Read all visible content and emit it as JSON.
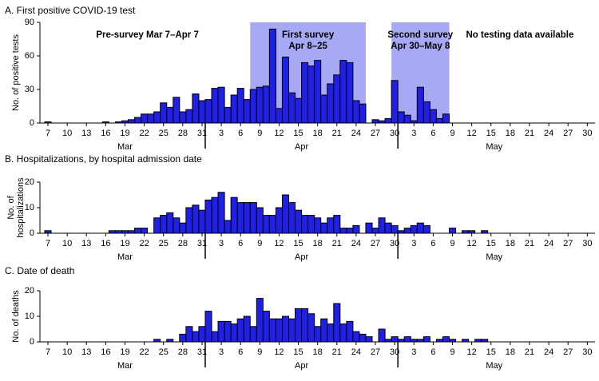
{
  "chart_data": [
    {
      "type": "bar",
      "title": "A. First positive COVID-19 test",
      "ylabel": [
        "No. of positive tests"
      ],
      "categories": [
        "7",
        null,
        null,
        "10",
        null,
        null,
        "13",
        null,
        null,
        "16",
        null,
        null,
        "19",
        null,
        null,
        "22",
        null,
        null,
        "25",
        null,
        null,
        "28",
        null,
        null,
        "31",
        null,
        null,
        "3",
        null,
        null,
        "6",
        null,
        null,
        "9",
        null,
        null,
        "12",
        null,
        null,
        "15",
        null,
        null,
        "18",
        null,
        null,
        "21",
        null,
        null,
        "24",
        null,
        null,
        "27",
        null,
        null,
        "30",
        null,
        null,
        "3",
        null,
        null,
        "6",
        null,
        null,
        "9",
        null,
        null,
        "12",
        null,
        null,
        "15",
        null,
        null,
        "18",
        null,
        null,
        "21",
        null,
        null,
        "24",
        null,
        null,
        "27",
        null,
        null,
        "30"
      ],
      "months": [
        {
          "label": "Mar",
          "start": 0
        },
        {
          "label": "Apr",
          "start": 25
        },
        {
          "label": "May",
          "start": 55
        }
      ],
      "values": [
        1,
        0,
        0,
        0,
        0,
        0,
        0,
        0,
        0,
        1,
        0,
        1,
        2,
        3,
        5,
        8,
        8,
        10,
        18,
        14,
        23,
        10,
        12,
        26,
        20,
        21,
        31,
        32,
        14,
        25,
        31,
        21,
        30,
        32,
        33,
        84,
        13,
        59,
        27,
        22,
        54,
        51,
        56,
        25,
        35,
        43,
        56,
        54,
        20,
        17,
        0,
        3,
        2,
        4,
        38,
        10,
        7,
        2,
        32,
        19,
        12,
        4,
        8,
        0,
        0,
        0,
        0,
        0,
        0,
        0,
        0,
        0,
        0,
        0,
        0,
        0,
        0,
        0,
        0,
        0,
        0,
        0,
        0,
        0,
        0
      ],
      "color": "#1f1fe6",
      "ylim": [
        0,
        90
      ],
      "yticks": [
        0,
        30,
        60,
        90
      ],
      "shade_color": "#a8a9f4",
      "spans": [
        {
          "label": [
            "Pre-survey Mar 7–Apr 7"
          ],
          "start": 0,
          "end": 31,
          "shaded": false
        },
        {
          "label": [
            "First survey",
            "Apr 8–25"
          ],
          "start": 32,
          "end": 49,
          "shaded": true
        },
        {
          "label": [
            "Second survey",
            "Apr 30–May 8"
          ],
          "start": 54,
          "end": 62,
          "shaded": true
        },
        {
          "label": [
            "No testing data available"
          ],
          "start": 63,
          "end": 84,
          "shaded": false
        }
      ]
    },
    {
      "type": "bar",
      "title": "B. Hospitalizations, by hospital admission date",
      "ylabel": [
        "No. of",
        "hospitalizations"
      ],
      "categories": [
        "7",
        null,
        null,
        "10",
        null,
        null,
        "13",
        null,
        null,
        "16",
        null,
        null,
        "19",
        null,
        null,
        "22",
        null,
        null,
        "25",
        null,
        null,
        "28",
        null,
        null,
        "31",
        null,
        null,
        "3",
        null,
        null,
        "6",
        null,
        null,
        "9",
        null,
        null,
        "12",
        null,
        null,
        "15",
        null,
        null,
        "18",
        null,
        null,
        "21",
        null,
        null,
        "24",
        null,
        null,
        "27",
        null,
        null,
        "30",
        null,
        null,
        "3",
        null,
        null,
        "6",
        null,
        null,
        "9",
        null,
        null,
        "12",
        null,
        null,
        "15",
        null,
        null,
        "18",
        null,
        null,
        "21",
        null,
        null,
        "24",
        null,
        null,
        "27",
        null,
        null,
        "30"
      ],
      "months": [
        {
          "label": "Mar",
          "start": 0
        },
        {
          "label": "Apr",
          "start": 25
        },
        {
          "label": "May",
          "start": 55
        }
      ],
      "values": [
        1,
        0,
        0,
        0,
        0,
        0,
        0,
        0,
        0,
        0,
        1,
        1,
        1,
        1,
        2,
        2,
        0,
        6,
        7,
        8,
        6,
        4,
        10,
        11,
        9,
        13,
        14,
        16,
        5,
        14,
        12,
        12,
        12,
        10,
        7,
        7,
        10,
        15,
        12,
        9,
        7,
        7,
        6,
        4,
        6,
        7,
        2,
        2,
        3,
        0,
        4,
        2,
        6,
        4,
        3,
        1,
        2,
        3,
        4,
        3,
        0,
        0,
        0,
        2,
        0,
        1,
        1,
        0,
        1,
        0,
        0,
        0,
        0,
        0,
        0,
        0,
        0,
        0,
        0,
        0,
        0,
        0,
        0,
        0,
        0
      ],
      "color": "#1f1fe6",
      "ylim": [
        0,
        20
      ],
      "yticks": [
        0,
        10,
        20
      ]
    },
    {
      "type": "bar",
      "title": "C. Date of death",
      "ylabel": [
        "No. of deaths"
      ],
      "categories": [
        "7",
        null,
        null,
        "10",
        null,
        null,
        "13",
        null,
        null,
        "16",
        null,
        null,
        "19",
        null,
        null,
        "22",
        null,
        null,
        "25",
        null,
        null,
        "28",
        null,
        null,
        "31",
        null,
        null,
        "3",
        null,
        null,
        "6",
        null,
        null,
        "9",
        null,
        null,
        "12",
        null,
        null,
        "15",
        null,
        null,
        "18",
        null,
        null,
        "21",
        null,
        null,
        "24",
        null,
        null,
        "27",
        null,
        null,
        "30",
        null,
        null,
        "3",
        null,
        null,
        "6",
        null,
        null,
        "9",
        null,
        null,
        "12",
        null,
        null,
        "15",
        null,
        null,
        "18",
        null,
        null,
        "21",
        null,
        null,
        "24",
        null,
        null,
        "27",
        null,
        null,
        "30"
      ],
      "months": [
        {
          "label": "Mar",
          "start": 0
        },
        {
          "label": "Apr",
          "start": 25
        },
        {
          "label": "May",
          "start": 55
        }
      ],
      "values": [
        0,
        0,
        0,
        0,
        0,
        0,
        0,
        0,
        0,
        0,
        0,
        0,
        0,
        0,
        0,
        0,
        0,
        1,
        0,
        1,
        0,
        3,
        6,
        4,
        6,
        12,
        4,
        8,
        8,
        7,
        9,
        10,
        6,
        17,
        12,
        9,
        9,
        10,
        9,
        13,
        13,
        11,
        6,
        9,
        7,
        15,
        7,
        8,
        4,
        3,
        2,
        0,
        5,
        1,
        2,
        1,
        2,
        1,
        1,
        2,
        0,
        1,
        2,
        1,
        0,
        1,
        0,
        1,
        1,
        0,
        0,
        0,
        0,
        0,
        0,
        0,
        0,
        0,
        0,
        0,
        0,
        0,
        0,
        0,
        0
      ],
      "color": "#1f1fe6",
      "ylim": [
        0,
        20
      ],
      "yticks": [
        0,
        10,
        20
      ]
    }
  ]
}
